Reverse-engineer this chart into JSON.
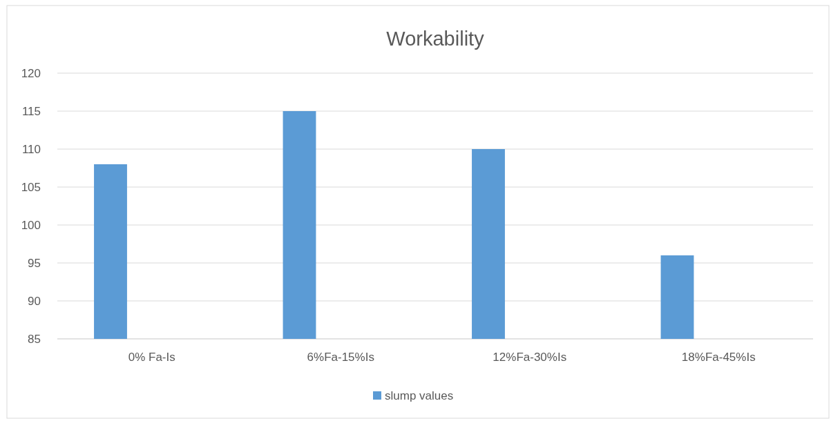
{
  "chart_data": {
    "type": "bar",
    "title": "Workability",
    "categories": [
      "0% Fa-Is",
      "6%Fa-15%Is",
      "12%Fa-30%Is",
      "18%Fa-45%Is"
    ],
    "series": [
      {
        "name": "slump values",
        "color": "#5b9bd5",
        "values": [
          108,
          115,
          110,
          96
        ]
      }
    ],
    "ylim": [
      85,
      120
    ],
    "yticks": [
      85,
      90,
      95,
      100,
      105,
      110,
      115,
      120
    ],
    "grid": "y",
    "legend": "bottom"
  }
}
